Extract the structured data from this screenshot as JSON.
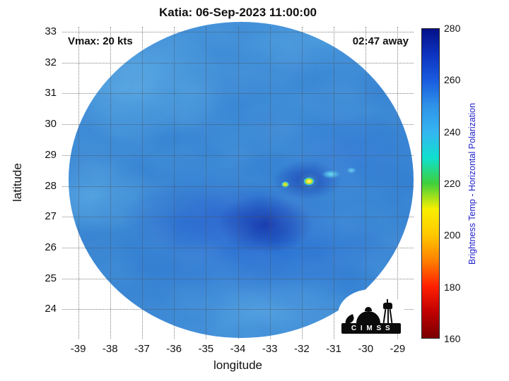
{
  "title": "Katia: 06-Sep-2023 11:00:00",
  "annotations": {
    "vmax": "Vmax: 20 kts",
    "away": "02:47 away"
  },
  "axes": {
    "xlabel": "longitude",
    "ylabel": "latitude",
    "xticks": [
      "-39",
      "-38",
      "-37",
      "-36",
      "-35",
      "-34",
      "-33",
      "-32",
      "-31",
      "-30",
      "-29"
    ],
    "yticks": [
      "33",
      "32",
      "31",
      "30",
      "29",
      "28",
      "27",
      "26",
      "25",
      "24"
    ]
  },
  "colorbar": {
    "label": "Brightness Temp - Horizontal Polarization",
    "label_color": "#2222cc",
    "ticks": [
      "280",
      "260",
      "240",
      "220",
      "200",
      "180",
      "160"
    ],
    "min": 160,
    "max": 280,
    "colormap_stops": [
      {
        "value": 160,
        "color": "#7a0000"
      },
      {
        "value": 170,
        "color": "#c00000"
      },
      {
        "value": 180,
        "color": "#ff2000"
      },
      {
        "value": 190,
        "color": "#ff8000"
      },
      {
        "value": 200,
        "color": "#ffc800"
      },
      {
        "value": 210,
        "color": "#f8f000"
      },
      {
        "value": 220,
        "color": "#3fd03c"
      },
      {
        "value": 230,
        "color": "#0fe0cf"
      },
      {
        "value": 240,
        "color": "#35b5f2"
      },
      {
        "value": 250,
        "color": "#2f93e8"
      },
      {
        "value": 260,
        "color": "#1a5ce0"
      },
      {
        "value": 270,
        "color": "#0d33c0"
      },
      {
        "value": 280,
        "color": "#041088"
      }
    ]
  },
  "logo": {
    "text": "C I M S S"
  },
  "chart_data": {
    "type": "heatmap",
    "title": "Katia: 06-Sep-2023 11:00:00",
    "xlabel": "longitude",
    "ylabel": "latitude",
    "xlim": [
      -39.5,
      -28.5
    ],
    "ylim": [
      23.1,
      33.2
    ],
    "x_ticks": [
      -39,
      -38,
      -37,
      -36,
      -35,
      -34,
      -33,
      -32,
      -31,
      -30,
      -29
    ],
    "y_ticks": [
      33,
      32,
      31,
      30,
      29,
      28,
      27,
      26,
      25,
      24
    ],
    "grid": true,
    "colorbar": {
      "label": "Brightness Temp - Horizontal Polarization",
      "range": [
        160,
        280
      ],
      "tick_step": 20,
      "orientation": "vertical-right",
      "colormap": "jet-reversed (dark red = 160 K cold, navy = 280 K warm)"
    },
    "swath": {
      "shape": "circular",
      "center_lon": -33.9,
      "center_lat": 28.2,
      "radius_deg": 5.4,
      "background_temp_K": "245-268 (mottled blues)"
    },
    "features": [
      {
        "name": "storm-core-dark-blue-region",
        "lon": -33.6,
        "lat": 27.3,
        "approx_temp_K": 272
      },
      {
        "name": "deep-convection-cell-yellow",
        "lon": -31.6,
        "lat": 28.15,
        "approx_temp_K": 205
      },
      {
        "name": "convection-cell-yellow-green",
        "lon": -32.3,
        "lat": 28.05,
        "approx_temp_K": 215
      },
      {
        "name": "cold-cloud-patch-cyan",
        "lon": -31.1,
        "lat": 28.35,
        "approx_temp_K": 232
      },
      {
        "name": "cold-cloud-patch-cyan-east",
        "lon": -30.6,
        "lat": 28.5,
        "approx_temp_K": 238
      },
      {
        "name": "lighter-band-northwest",
        "lon": -37.5,
        "lat": 30.8,
        "approx_temp_K": 248
      }
    ],
    "annotations": [
      {
        "text": "Vmax: 20 kts",
        "position": "top-left"
      },
      {
        "text": "02:47 away",
        "position": "top-right"
      }
    ]
  }
}
